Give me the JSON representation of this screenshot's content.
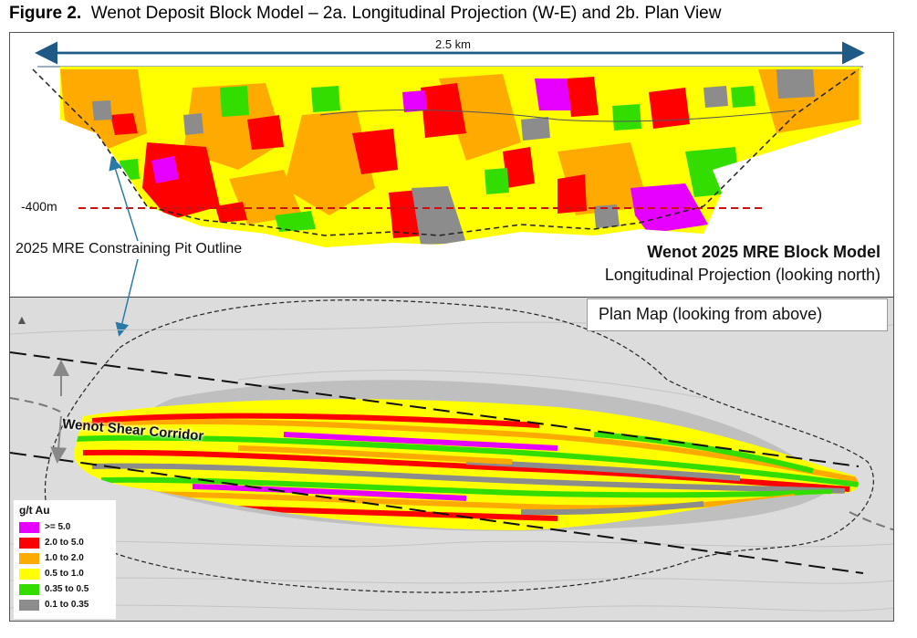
{
  "figure": {
    "label": "Figure 2.",
    "title": "Wenot Deposit Block Model – 2a. Longitudinal Projection (W-E) and 2b. Plan View"
  },
  "long_section": {
    "scale_label": "2.5 km",
    "depth_label": "-400m",
    "pit_label": "2025 MRE Constraining Pit Outline",
    "model_title": "Wenot 2025 MRE Block Model",
    "model_subtitle": "Longitudinal Projection (looking north)"
  },
  "plan": {
    "box_label": "Plan Map (looking from above)",
    "shear_label": "Wenot Shear Corridor"
  },
  "legend": {
    "title": "g/t Au",
    "items": [
      {
        "label": ">= 5.0",
        "color": "#e600ff"
      },
      {
        "label": "2.0 to 5.0",
        "color": "#ff0000"
      },
      {
        "label": "1.0 to 2.0",
        "color": "#ffaa00"
      },
      {
        "label": "0.5 to 1.0",
        "color": "#ffff00"
      },
      {
        "label": "0.35 to 0.5",
        "color": "#33dd00"
      },
      {
        "label": "0.1 to 0.35",
        "color": "#8c8c8c"
      }
    ]
  }
}
